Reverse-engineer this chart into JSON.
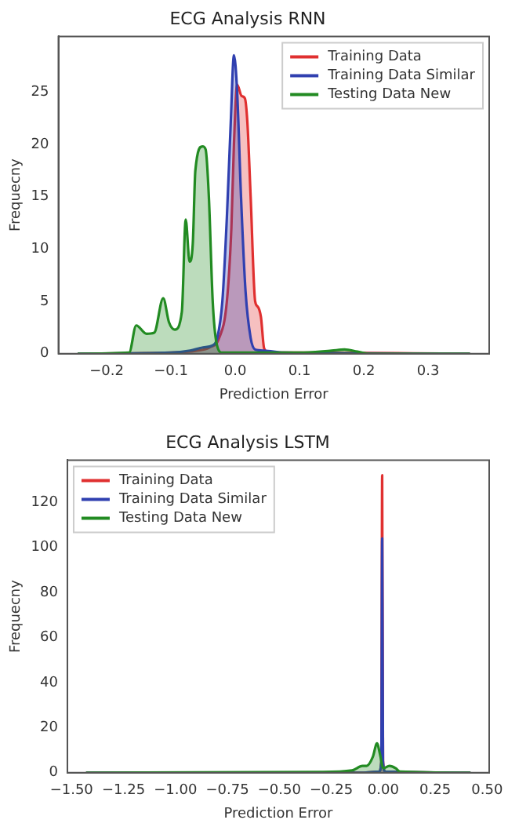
{
  "chart_data": [
    {
      "type": "area",
      "title": "ECG Analysis RNN",
      "xlabel": "Prediction Error",
      "ylabel": "Frequecny",
      "legend": "top right",
      "grid": false,
      "xlim": [
        -0.275,
        0.395
      ],
      "ylim": [
        0,
        30.3
      ],
      "xticks": [
        {
          "value": -0.2,
          "label": "−0.2"
        },
        {
          "value": -0.1,
          "label": "−0.1"
        },
        {
          "value": 0,
          "label": "0.0"
        },
        {
          "value": 0.1,
          "label": "0.1"
        },
        {
          "value": 0.2,
          "label": "0.2"
        },
        {
          "value": 0.3,
          "label": "0.3"
        }
      ],
      "yticks": [
        0,
        5,
        10,
        15,
        20,
        25
      ],
      "series": [
        {
          "name": "Training Data",
          "color": "#e03030",
          "x": [
            -0.245,
            -0.1,
            -0.06,
            -0.04,
            -0.025,
            -0.013,
            -0.006,
            -0.002,
            0.003,
            0.01,
            0.015,
            0.019,
            0.024,
            0.031,
            0.035,
            0.04,
            0.045,
            0.053,
            0.1,
            0.365
          ],
          "values": [
            0,
            0.1,
            0.3,
            0.6,
            1.5,
            5,
            12,
            20,
            25.7,
            24.6,
            24.4,
            22,
            15,
            5,
            4.5,
            3.5,
            0.5,
            0.1,
            0.1,
            0
          ]
        },
        {
          "name": "Training Data Similar",
          "color": "#3040b0",
          "x": [
            -0.245,
            -0.1,
            -0.07,
            -0.05,
            -0.035,
            -0.028,
            -0.02,
            -0.013,
            -0.007,
            -0.002,
            0.003,
            0.009,
            0.016,
            0.024,
            0.031,
            0.045,
            0.075,
            0.365
          ],
          "values": [
            0,
            0.1,
            0.3,
            0.6,
            0.8,
            1.5,
            5,
            13,
            22,
            28.5,
            25,
            15,
            6,
            1.5,
            0.4,
            0.3,
            0.1,
            0
          ]
        },
        {
          "name": "Testing Data New",
          "color": "#228b22",
          "x": [
            -0.245,
            -0.165,
            -0.154,
            -0.138,
            -0.126,
            -0.112,
            -0.103,
            -0.094,
            -0.083,
            -0.077,
            -0.071,
            -0.066,
            -0.062,
            -0.051,
            -0.046,
            -0.041,
            -0.035,
            -0.029,
            -0.02,
            0.1,
            0.15,
            0.17,
            0.19,
            0.21,
            0.365
          ],
          "values": [
            0,
            0.1,
            2.7,
            1.9,
            2,
            5.3,
            3,
            2.3,
            4,
            12.8,
            8.8,
            10.5,
            17.5,
            19.8,
            19.5,
            15,
            5,
            1,
            0.1,
            0.1,
            0.3,
            0.4,
            0.2,
            0,
            0
          ]
        }
      ]
    },
    {
      "type": "area",
      "title": "ECG Analysis LSTM",
      "xlabel": "Prediction Error",
      "ylabel": "Frequecny",
      "legend": "top left",
      "grid": false,
      "xlim": [
        -1.52,
        0.51
      ],
      "ylim": [
        0,
        138.7
      ],
      "xticks": [
        {
          "value": -1.5,
          "label": "−1.50"
        },
        {
          "value": -1.25,
          "label": "−1.25"
        },
        {
          "value": -1,
          "label": "−1.00"
        },
        {
          "value": -0.75,
          "label": "−0.75"
        },
        {
          "value": -0.5,
          "label": "−0.50"
        },
        {
          "value": -0.25,
          "label": "−0.25"
        },
        {
          "value": 0,
          "label": "0.00"
        },
        {
          "value": 0.25,
          "label": "0.25"
        },
        {
          "value": 0.5,
          "label": "0.50"
        }
      ],
      "yticks": [
        0,
        20,
        40,
        60,
        80,
        100,
        120
      ],
      "series": [
        {
          "name": "Training Data",
          "color": "#e03030",
          "x": [
            -1.43,
            -0.1,
            -0.02,
            -0.009,
            -0.005,
            -0.001,
            0.01,
            0.42
          ],
          "values": [
            0,
            0,
            0.5,
            5,
            132,
            5,
            0.5,
            0
          ]
        },
        {
          "name": "Training Data Similar",
          "color": "#3040b0",
          "x": [
            -1.43,
            -0.1,
            -0.02,
            -0.009,
            -0.005,
            -0.001,
            0.01,
            0.42
          ],
          "values": [
            0,
            0,
            0.5,
            5,
            104,
            5,
            0.5,
            0
          ]
        },
        {
          "name": "Testing Data New",
          "color": "#228b22",
          "x": [
            -1.43,
            -0.3,
            -0.15,
            -0.1,
            -0.08,
            -0.05,
            -0.03,
            -0.015,
            0,
            0.03,
            0.06,
            0.08,
            0.42
          ],
          "values": [
            0,
            0.3,
            1,
            3,
            3,
            7,
            13,
            8,
            2,
            3,
            2,
            0.5,
            0
          ]
        }
      ]
    }
  ]
}
